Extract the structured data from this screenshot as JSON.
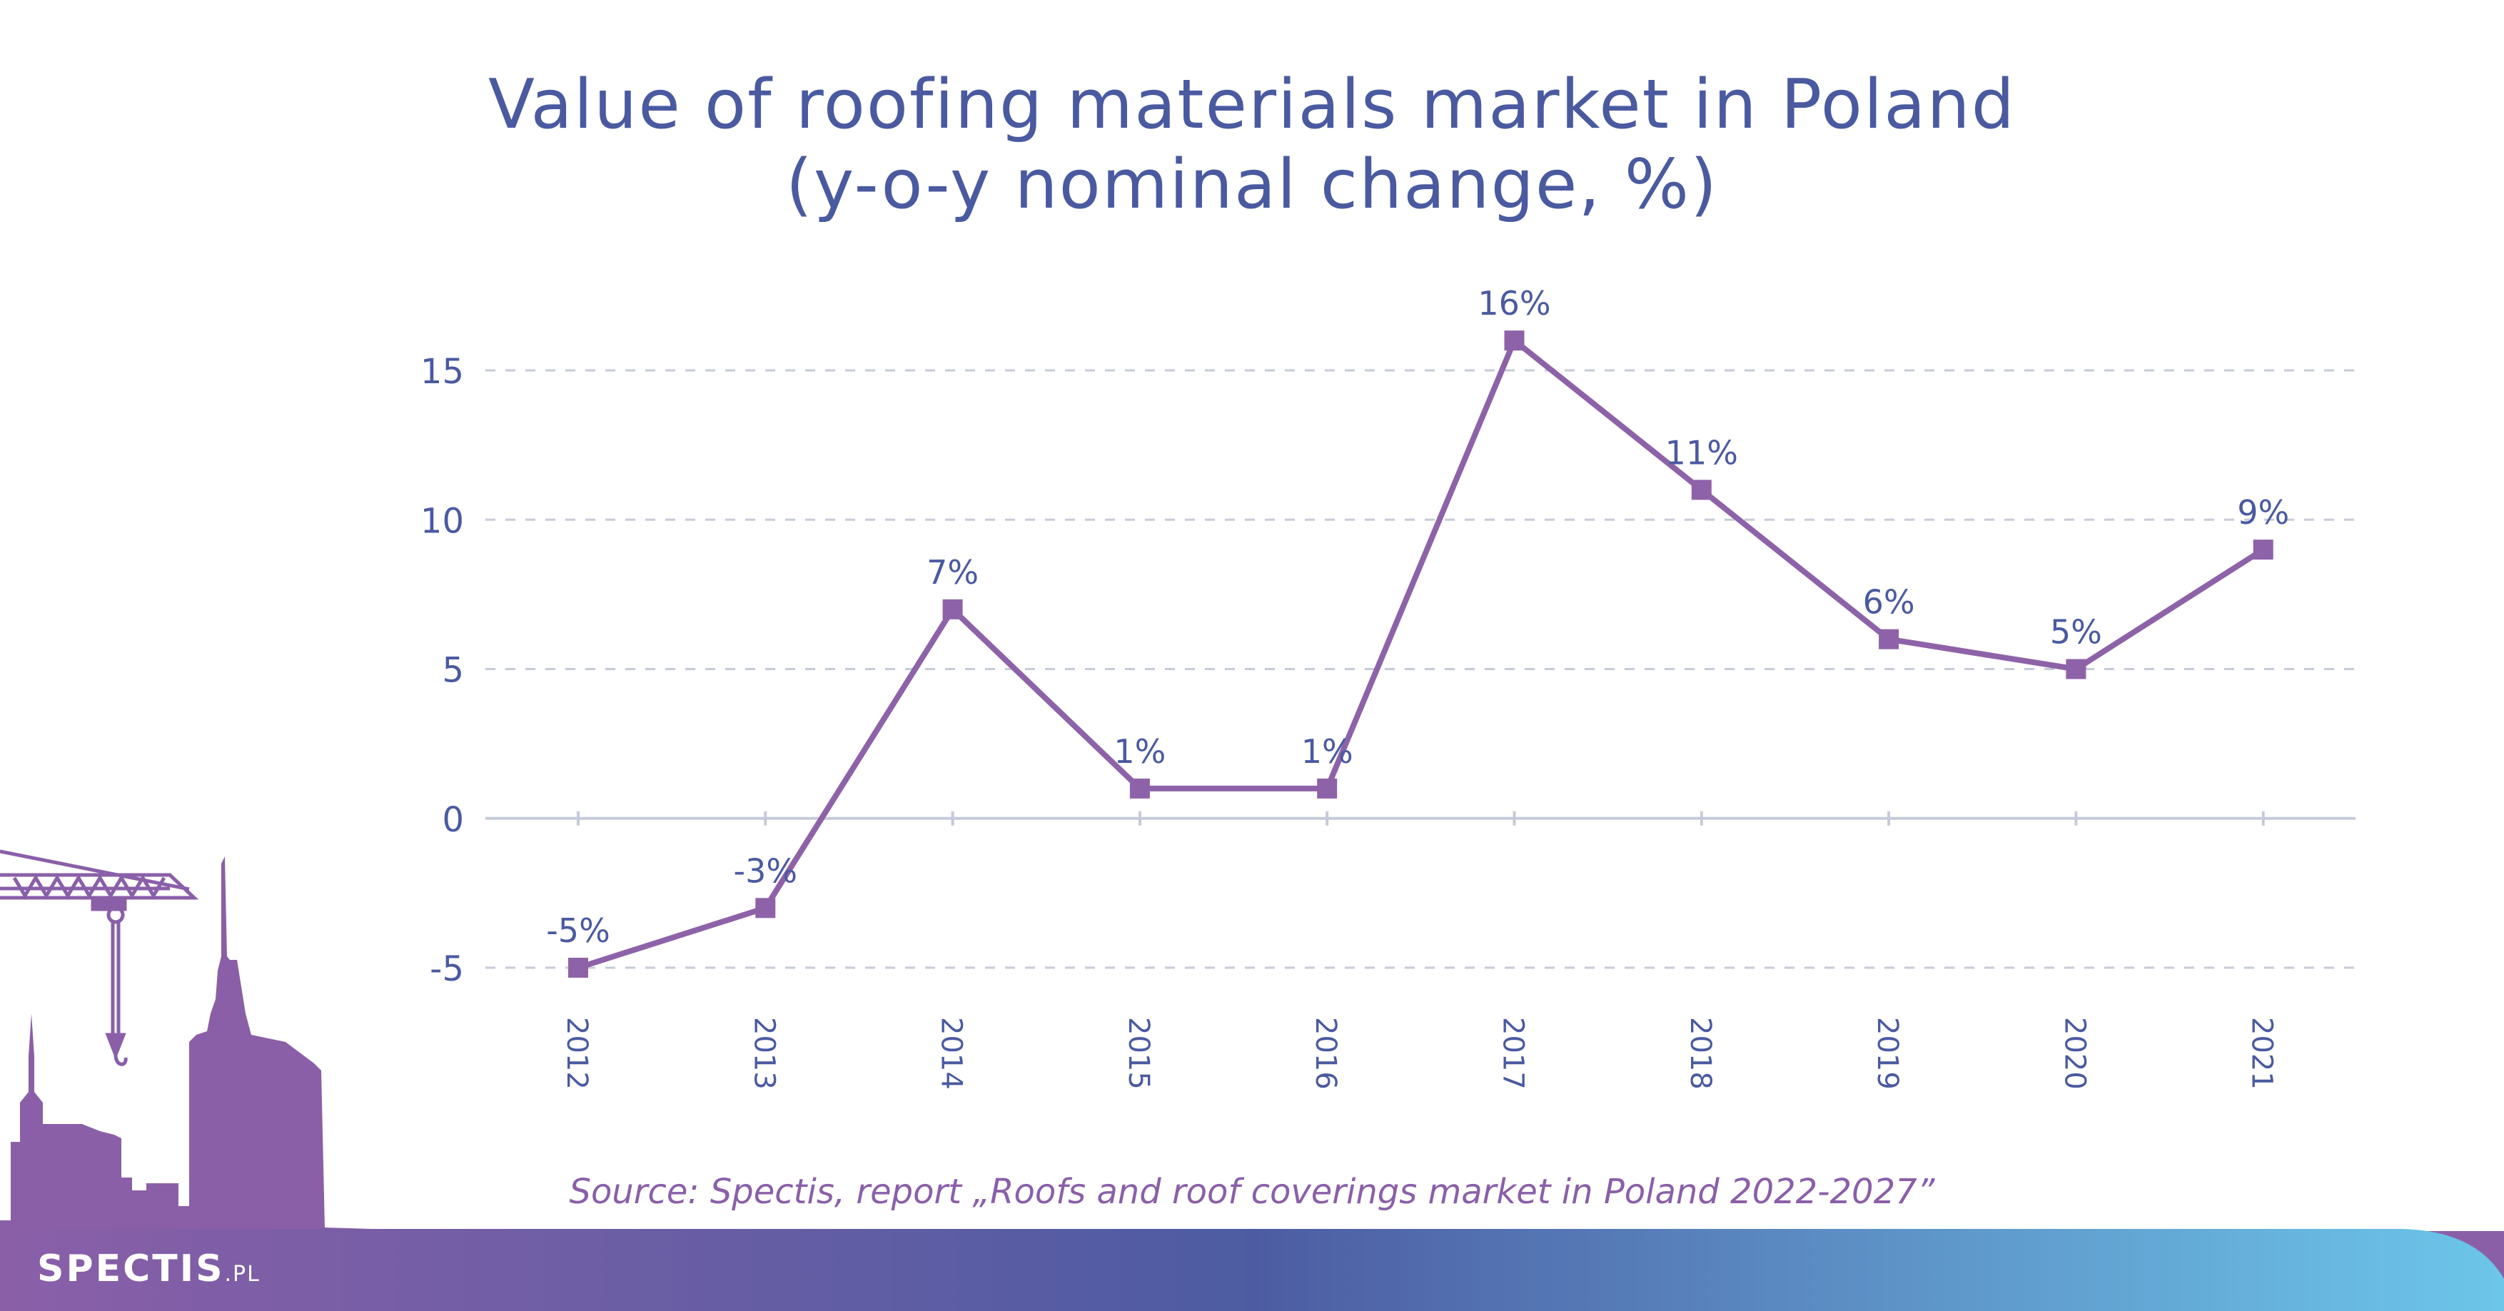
{
  "title": {
    "line1": "Value of roofing materials market in Poland",
    "line2": "(y-o-y nominal change, %)"
  },
  "source": "Source: Spectis, report „Roofs and roof coverings market in Poland 2022-2027”",
  "logo": {
    "main": "SPECTIS",
    "suffix": ".PL"
  },
  "colors": {
    "title": "#4a5aa0",
    "line": "#8e62a8",
    "label": "#4a5aa0",
    "grid": "#c5cbd8",
    "source": "#8a5fa8",
    "band_left": "#8a5fa8",
    "band_mid": "#4d5ca2",
    "band_right": "#6cc6ea"
  },
  "chart_data": {
    "type": "line",
    "title": "Value of roofing materials market in Poland (y-o-y nominal change, %)",
    "categories": [
      "2012",
      "2013",
      "2014",
      "2015",
      "2016",
      "2017",
      "2018",
      "2019",
      "2020",
      "2021"
    ],
    "series": [
      {
        "values": [
          -5,
          -3,
          7,
          1,
          1,
          16,
          11,
          6,
          5,
          9
        ],
        "data_labels": [
          "-5%",
          "-3%",
          "7%",
          "1%",
          "1%",
          "16%",
          "11%",
          "6%",
          "5%",
          "9%"
        ]
      }
    ],
    "yticks": [
      -5,
      0,
      5,
      10,
      15
    ],
    "ytick_labels": [
      "-5",
      "0",
      "5",
      "10",
      "15"
    ],
    "ylim": [
      -5,
      16
    ],
    "grid": "horizontal dashed",
    "xlabel": "",
    "ylabel": ""
  }
}
